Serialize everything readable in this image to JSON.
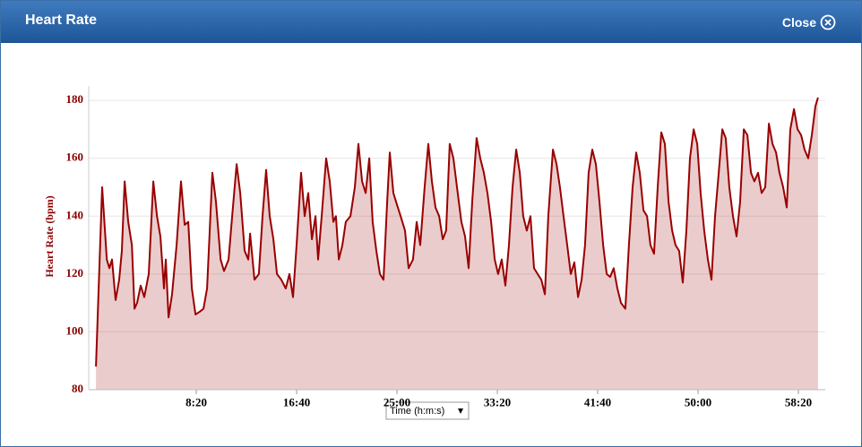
{
  "header": {
    "title": "Heart Rate",
    "close": "Close"
  },
  "chart_data": {
    "type": "area",
    "y_label": "Heart Rate (bpm)",
    "x_selector": "Time (h:m:s)",
    "color": "#990000",
    "fill": "rgba(153,0,0,0.2)",
    "grid": true,
    "xlim": [
      -36,
      3634
    ],
    "ylim": [
      80,
      185
    ],
    "yticks": [
      80,
      100,
      120,
      140,
      160,
      180
    ],
    "xticks": [
      {
        "value": 500,
        "label": "8:20"
      },
      {
        "value": 1000,
        "label": "16:40"
      },
      {
        "value": 1500,
        "label": "25:00"
      },
      {
        "value": 2000,
        "label": "33:20"
      },
      {
        "value": 2500,
        "label": "41:40"
      },
      {
        "value": 3000,
        "label": "50:00"
      },
      {
        "value": 3500,
        "label": "58:20"
      }
    ],
    "x": [
      0,
      31,
      54,
      67,
      80,
      98,
      116,
      129,
      143,
      161,
      179,
      192,
      205,
      223,
      241,
      263,
      286,
      304,
      321,
      339,
      348,
      362,
      379,
      402,
      424,
      442,
      460,
      478,
      496,
      518,
      536,
      554,
      580,
      598,
      621,
      638,
      661,
      679,
      701,
      719,
      741,
      759,
      768,
      790,
      812,
      830,
      848,
      866,
      884,
      902,
      924,
      946,
      964,
      982,
      1000,
      1022,
      1040,
      1058,
      1076,
      1094,
      1107,
      1125,
      1147,
      1165,
      1183,
      1196,
      1210,
      1228,
      1245,
      1268,
      1290,
      1308,
      1326,
      1344,
      1362,
      1379,
      1397,
      1415,
      1433,
      1451,
      1464,
      1482,
      1500,
      1518,
      1540,
      1558,
      1580,
      1598,
      1616,
      1638,
      1656,
      1674,
      1692,
      1710,
      1728,
      1745,
      1763,
      1781,
      1799,
      1821,
      1839,
      1857,
      1875,
      1897,
      1915,
      1933,
      1951,
      1969,
      1987,
      2004,
      2022,
      2040,
      2058,
      2076,
      2094,
      2112,
      2129,
      2147,
      2165,
      2183,
      2201,
      2219,
      2237,
      2254,
      2277,
      2295,
      2312,
      2330,
      2348,
      2366,
      2384,
      2402,
      2420,
      2437,
      2455,
      2473,
      2491,
      2509,
      2527,
      2545,
      2562,
      2580,
      2598,
      2616,
      2638,
      2656,
      2674,
      2692,
      2710,
      2728,
      2746,
      2763,
      2781,
      2799,
      2817,
      2835,
      2853,
      2871,
      2888,
      2906,
      2924,
      2942,
      2960,
      2978,
      2996,
      3013,
      3031,
      3049,
      3067,
      3085,
      3103,
      3121,
      3138,
      3156,
      3174,
      3192,
      3210,
      3228,
      3246,
      3264,
      3281,
      3299,
      3317,
      3335,
      3353,
      3371,
      3389,
      3406,
      3424,
      3442,
      3460,
      3478,
      3496,
      3514,
      3531,
      3549,
      3567,
      3585,
      3598
    ],
    "values": [
      88,
      150,
      125,
      122,
      125,
      111,
      118,
      128,
      152,
      138,
      130,
      108,
      110,
      116,
      112,
      120,
      152,
      140,
      133,
      115,
      125,
      105,
      113,
      130,
      152,
      137,
      138,
      115,
      106,
      107,
      108,
      115,
      155,
      145,
      125,
      121,
      125,
      140,
      158,
      148,
      128,
      125,
      134,
      118,
      120,
      140,
      156,
      140,
      132,
      120,
      118,
      115,
      120,
      112,
      130,
      155,
      140,
      148,
      132,
      140,
      125,
      140,
      160,
      152,
      138,
      140,
      125,
      130,
      138,
      140,
      150,
      165,
      152,
      148,
      160,
      138,
      128,
      120,
      118,
      145,
      162,
      148,
      144,
      140,
      135,
      122,
      125,
      138,
      130,
      150,
      165,
      152,
      143,
      140,
      132,
      135,
      165,
      160,
      150,
      138,
      133,
      122,
      145,
      167,
      160,
      155,
      148,
      138,
      125,
      120,
      125,
      116,
      130,
      150,
      163,
      155,
      140,
      135,
      140,
      122,
      120,
      118,
      113,
      140,
      163,
      158,
      150,
      140,
      130,
      120,
      124,
      112,
      118,
      130,
      155,
      163,
      158,
      145,
      130,
      120,
      119,
      122,
      115,
      110,
      108,
      130,
      150,
      162,
      155,
      142,
      140,
      130,
      127,
      150,
      169,
      165,
      145,
      135,
      130,
      128,
      117,
      135,
      160,
      170,
      165,
      148,
      135,
      125,
      118,
      140,
      155,
      170,
      167,
      150,
      140,
      133,
      145,
      170,
      168,
      155,
      152,
      155,
      148,
      150,
      172,
      165,
      162,
      155,
      150,
      143,
      170,
      177,
      170,
      168,
      163,
      160,
      168,
      178,
      181
    ]
  }
}
